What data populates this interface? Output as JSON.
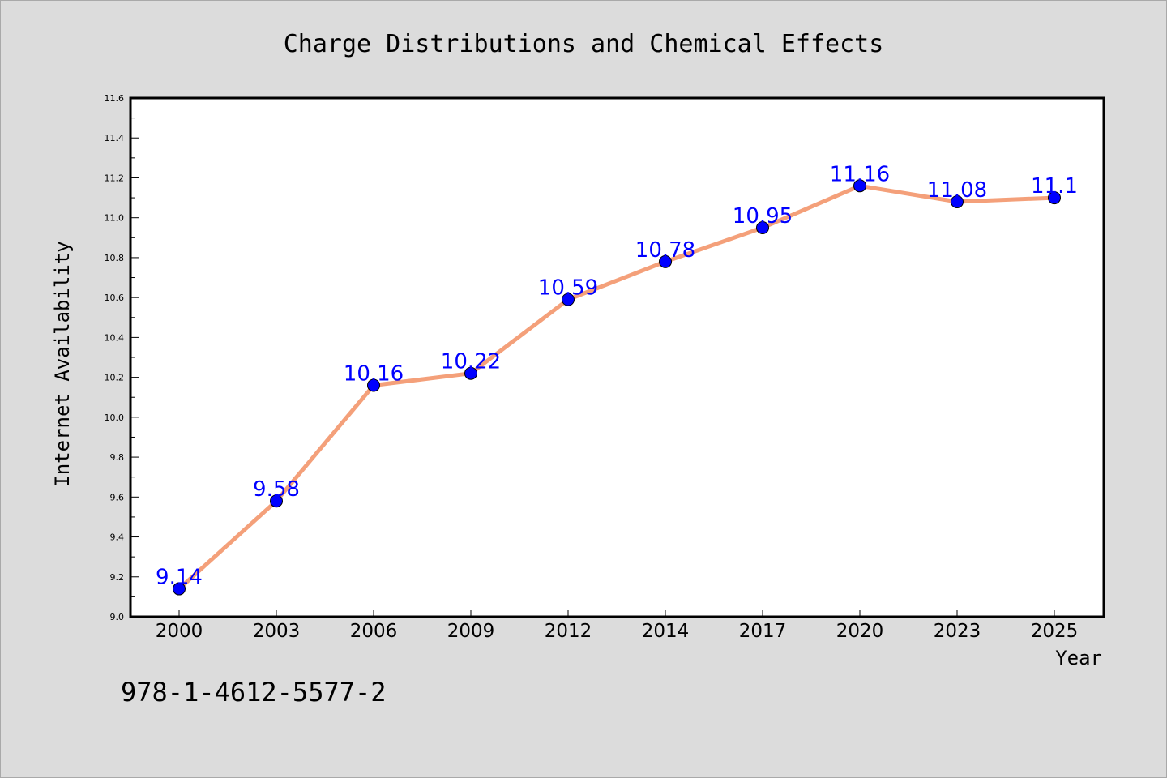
{
  "chart_data": {
    "type": "line",
    "title": "Charge Distributions and Chemical Effects",
    "xlabel": "Year",
    "ylabel": "Internet Availability",
    "categories": [
      "2000",
      "2003",
      "2006",
      "2009",
      "2012",
      "2014",
      "2017",
      "2020",
      "2023",
      "2025"
    ],
    "series": [
      {
        "values": [
          9.14,
          9.58,
          10.16,
          10.22,
          10.59,
          10.78,
          10.95,
          11.16,
          11.08,
          11.1
        ],
        "labels": [
          "9.14",
          "9.58",
          "10.16",
          "10.22",
          "10.59",
          "10.78",
          "10.95",
          "11.16",
          "11.08",
          "11.1"
        ],
        "line_color": "#f4a07a",
        "marker_color": "#0000ff",
        "label_color": "#0000ff"
      }
    ],
    "ylim": [
      9.0,
      11.6
    ],
    "yticks": [
      "9.0",
      "9.2",
      "9.4",
      "9.6",
      "9.8",
      "10.0",
      "10.2",
      "10.4",
      "10.6",
      "10.8",
      "11.0",
      "11.2",
      "11.4",
      "11.6"
    ],
    "grid": false,
    "legend": false,
    "background_color": "#dcdcdc",
    "plot_background_color": "#ffffff"
  },
  "footer": {
    "isbn": "978-1-4612-5577-2"
  }
}
